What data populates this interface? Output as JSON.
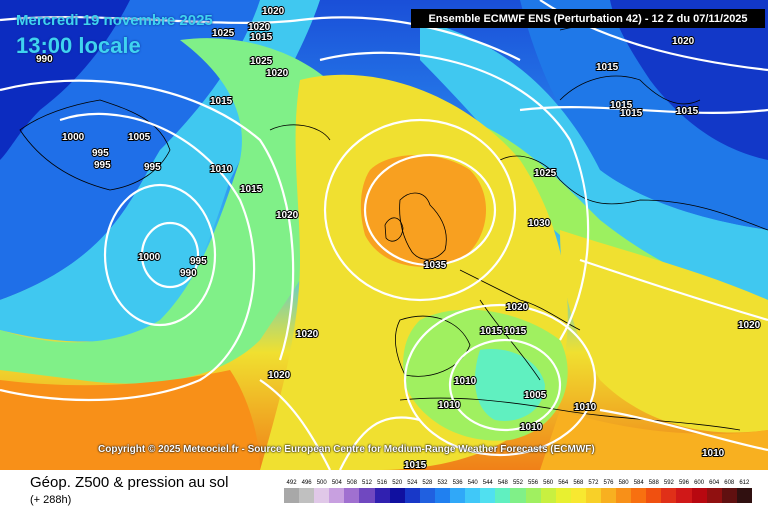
{
  "map": {
    "valid_date": "Mercredi 19 novembre 2025",
    "local_time": "13:00 locale",
    "header": "Ensemble ECMWF ENS  (Perturbation 42)  -  12 Z du 07/11/2025",
    "copyright": "Copyright © 2025 Meteociel.fr - Source European Centre for Medium-Range Weather Forecasts (ECMWF)",
    "product_title": "Géop. Z500 & pression au sol",
    "lead_time": "(+ 288h)",
    "isobar_labels": [
      "1020",
      "1020",
      "1025",
      "1015",
      "1025",
      "1020",
      "990",
      "1015",
      "1015",
      "1000",
      "1005",
      "995",
      "995",
      "995",
      "1010",
      "1015",
      "1020",
      "1000",
      "995",
      "990",
      "1020",
      "1015",
      "1025",
      "1030",
      "1035",
      "1020",
      "1015",
      "1015",
      "1010",
      "1010",
      "1010",
      "1005",
      "1010",
      "1020",
      "1020",
      "1020",
      "1015",
      "1015",
      "1015",
      "1010"
    ],
    "scale": {
      "labels": [
        "492",
        "496",
        "500",
        "504",
        "508",
        "512",
        "516",
        "520",
        "524",
        "528",
        "532",
        "536",
        "540",
        "544",
        "548",
        "552",
        "556",
        "560",
        "564",
        "568",
        "572",
        "576",
        "580",
        "584",
        "588",
        "592",
        "596",
        "600",
        "604",
        "608",
        "612"
      ],
      "colors": [
        "#a8a8a8",
        "#c0c0c0",
        "#e0c8e8",
        "#c8a0e0",
        "#a070d0",
        "#7048c0",
        "#3020b0",
        "#1010a0",
        "#1838c8",
        "#2060e0",
        "#2080f0",
        "#30a8f8",
        "#40c8f8",
        "#50e0f0",
        "#60f0c0",
        "#80f088",
        "#a0f060",
        "#c8f040",
        "#e8f030",
        "#f8e830",
        "#f8d028",
        "#f8b020",
        "#f89018",
        "#f87010",
        "#f05010",
        "#e03018",
        "#d01818",
        "#b80810",
        "#901010",
        "#601010",
        "#301010"
      ]
    }
  }
}
